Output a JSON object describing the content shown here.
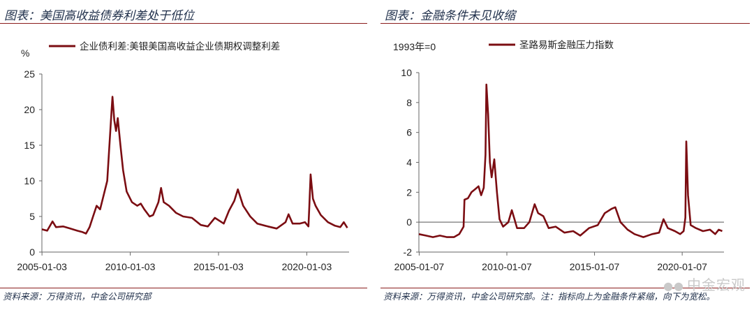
{
  "left": {
    "title": "图表：美国高收益债券利差处于低位",
    "source": "资料来源：万得资讯，中金公司研究部",
    "chart_data": {
      "type": "line",
      "unit_label": "%",
      "legend": "企业债利差:美银美国高收益企业债期权调整利差",
      "color": "#7b0d12",
      "ylim": [
        0,
        25
      ],
      "yticks": [
        "0",
        "5",
        "10",
        "15",
        "20",
        "25"
      ],
      "xlim": [
        2005.0,
        2022.4
      ],
      "xtick_labels": [
        "2005-01-03",
        "2010-01-03",
        "2015-01-03",
        "2020-01-03"
      ],
      "x": [
        2005.0,
        2005.3,
        2005.6,
        2005.8,
        2006.2,
        2006.6,
        2007.0,
        2007.3,
        2007.5,
        2007.7,
        2007.9,
        2008.1,
        2008.3,
        2008.5,
        2008.7,
        2008.8,
        2008.95,
        2009.0,
        2009.1,
        2009.2,
        2009.3,
        2009.45,
        2009.6,
        2009.8,
        2010.1,
        2010.4,
        2010.6,
        2010.8,
        2011.1,
        2011.3,
        2011.6,
        2011.75,
        2011.9,
        2012.2,
        2012.6,
        2013.0,
        2013.5,
        2014.0,
        2014.4,
        2014.8,
        2015.3,
        2015.6,
        2015.9,
        2016.1,
        2016.4,
        2016.8,
        2017.2,
        2017.8,
        2018.3,
        2018.8,
        2018.97,
        2019.2,
        2019.6,
        2019.9,
        2020.1,
        2020.15,
        2020.22,
        2020.35,
        2020.5,
        2020.8,
        2021.2,
        2021.6,
        2021.9,
        2022.1,
        2022.3
      ],
      "y": [
        3.2,
        3.0,
        4.3,
        3.5,
        3.6,
        3.3,
        3.0,
        2.8,
        2.6,
        3.5,
        5.0,
        6.5,
        6.0,
        8.0,
        10.0,
        14.0,
        20.0,
        21.8,
        18.5,
        17.0,
        18.8,
        15.0,
        11.5,
        8.5,
        7.0,
        6.5,
        6.8,
        6.0,
        5.0,
        5.2,
        7.0,
        9.0,
        7.0,
        6.5,
        5.5,
        5.0,
        4.8,
        3.8,
        3.6,
        4.8,
        4.0,
        5.8,
        7.2,
        8.8,
        6.5,
        5.0,
        4.0,
        3.6,
        3.3,
        4.2,
        5.3,
        4.0,
        4.0,
        4.2,
        3.6,
        6.5,
        10.9,
        7.5,
        6.5,
        5.2,
        4.2,
        3.7,
        3.5,
        4.2,
        3.4
      ]
    }
  },
  "right": {
    "title": "图表：金融条件未见收缩",
    "source": "资料来源：万得资讯，中金公司研究部。注：指标向上为金融条件紧缩，向下为宽松。",
    "watermark": "中金宏观",
    "chart_data": {
      "type": "line",
      "unit_label": "1993年=0",
      "legend": "圣路易斯金融压力指数",
      "color": "#7b0d12",
      "ylim": [
        -2,
        10
      ],
      "yticks": [
        "-2",
        "0",
        "2",
        "4",
        "6",
        "8",
        "10"
      ],
      "xlim": [
        2005.0,
        2022.4
      ],
      "xtick_labels": [
        "2005-01-07",
        "2010-01-07",
        "2015-01-07",
        "2020-01-07"
      ],
      "x": [
        2005.0,
        2005.4,
        2005.8,
        2006.2,
        2006.6,
        2007.0,
        2007.3,
        2007.55,
        2007.6,
        2007.8,
        2008.0,
        2008.2,
        2008.4,
        2008.55,
        2008.7,
        2008.8,
        2008.85,
        2008.95,
        2009.05,
        2009.15,
        2009.3,
        2009.45,
        2009.6,
        2009.8,
        2010.1,
        2010.3,
        2010.45,
        2010.6,
        2011.0,
        2011.3,
        2011.6,
        2011.8,
        2012.1,
        2012.4,
        2012.8,
        2013.3,
        2013.8,
        2014.2,
        2014.7,
        2015.2,
        2015.6,
        2016.0,
        2016.2,
        2016.5,
        2016.9,
        2017.3,
        2017.8,
        2018.3,
        2018.7,
        2018.95,
        2019.2,
        2019.6,
        2019.9,
        2020.1,
        2020.2,
        2020.25,
        2020.35,
        2020.5,
        2020.8,
        2021.2,
        2021.6,
        2021.9,
        2022.1,
        2022.3
      ],
      "y": [
        -0.8,
        -0.9,
        -1.0,
        -0.9,
        -1.0,
        -1.0,
        -0.8,
        -0.3,
        1.5,
        1.6,
        2.0,
        2.2,
        2.4,
        1.8,
        2.3,
        4.5,
        9.2,
        7.2,
        4.0,
        3.0,
        4.2,
        2.0,
        0.2,
        -0.3,
        0.0,
        0.8,
        0.2,
        -0.4,
        -0.4,
        0.0,
        1.2,
        0.6,
        0.4,
        -0.4,
        -0.3,
        -0.7,
        -0.6,
        -0.9,
        -0.4,
        -0.2,
        0.6,
        0.9,
        1.0,
        0.0,
        -0.5,
        -0.8,
        -1.0,
        -0.8,
        -0.7,
        0.2,
        -0.4,
        -0.6,
        -0.8,
        -0.6,
        0.3,
        5.4,
        1.8,
        -0.2,
        -0.4,
        -0.6,
        -0.5,
        -0.8,
        -0.5,
        -0.6
      ]
    }
  }
}
